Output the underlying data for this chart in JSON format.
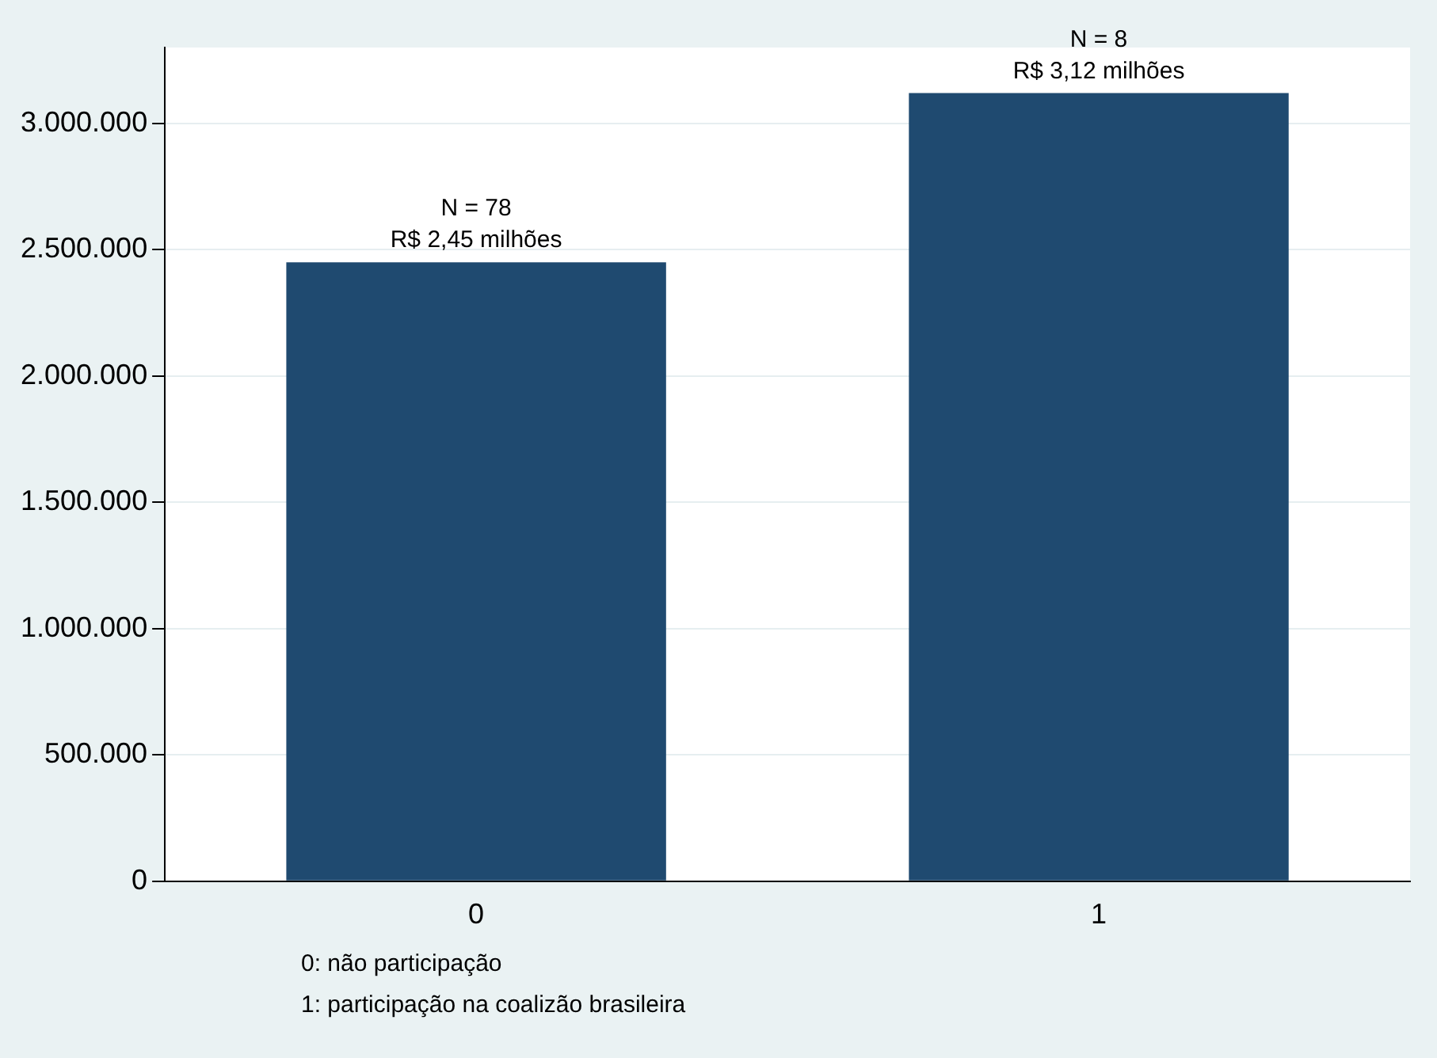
{
  "chart_data": {
    "type": "bar",
    "categories": [
      "0",
      "1"
    ],
    "values": [
      2450000,
      3120000
    ],
    "color": "#1f4a70",
    "ylim": [
      0,
      3300000
    ],
    "yticks": [
      {
        "value": 0,
        "label": "0"
      },
      {
        "value": 500000,
        "label": "500.000"
      },
      {
        "value": 1000000,
        "label": "1.000.000"
      },
      {
        "value": 1500000,
        "label": "1.500.000"
      },
      {
        "value": 2000000,
        "label": "2.000.000"
      },
      {
        "value": 2500000,
        "label": "2.500.000"
      },
      {
        "value": 3000000,
        "label": "3.000.000"
      }
    ],
    "grid": "y",
    "legend": false,
    "annotations": [
      {
        "text": "N = 78\nR$ 2,45 milhões",
        "x": "0",
        "y": 2450000
      },
      {
        "text": "N = 8\nR$ 3,12 milhões",
        "x": "1",
        "y": 3120000
      },
      "0: não participação",
      "1: participação na coalizão brasileira"
    ]
  }
}
